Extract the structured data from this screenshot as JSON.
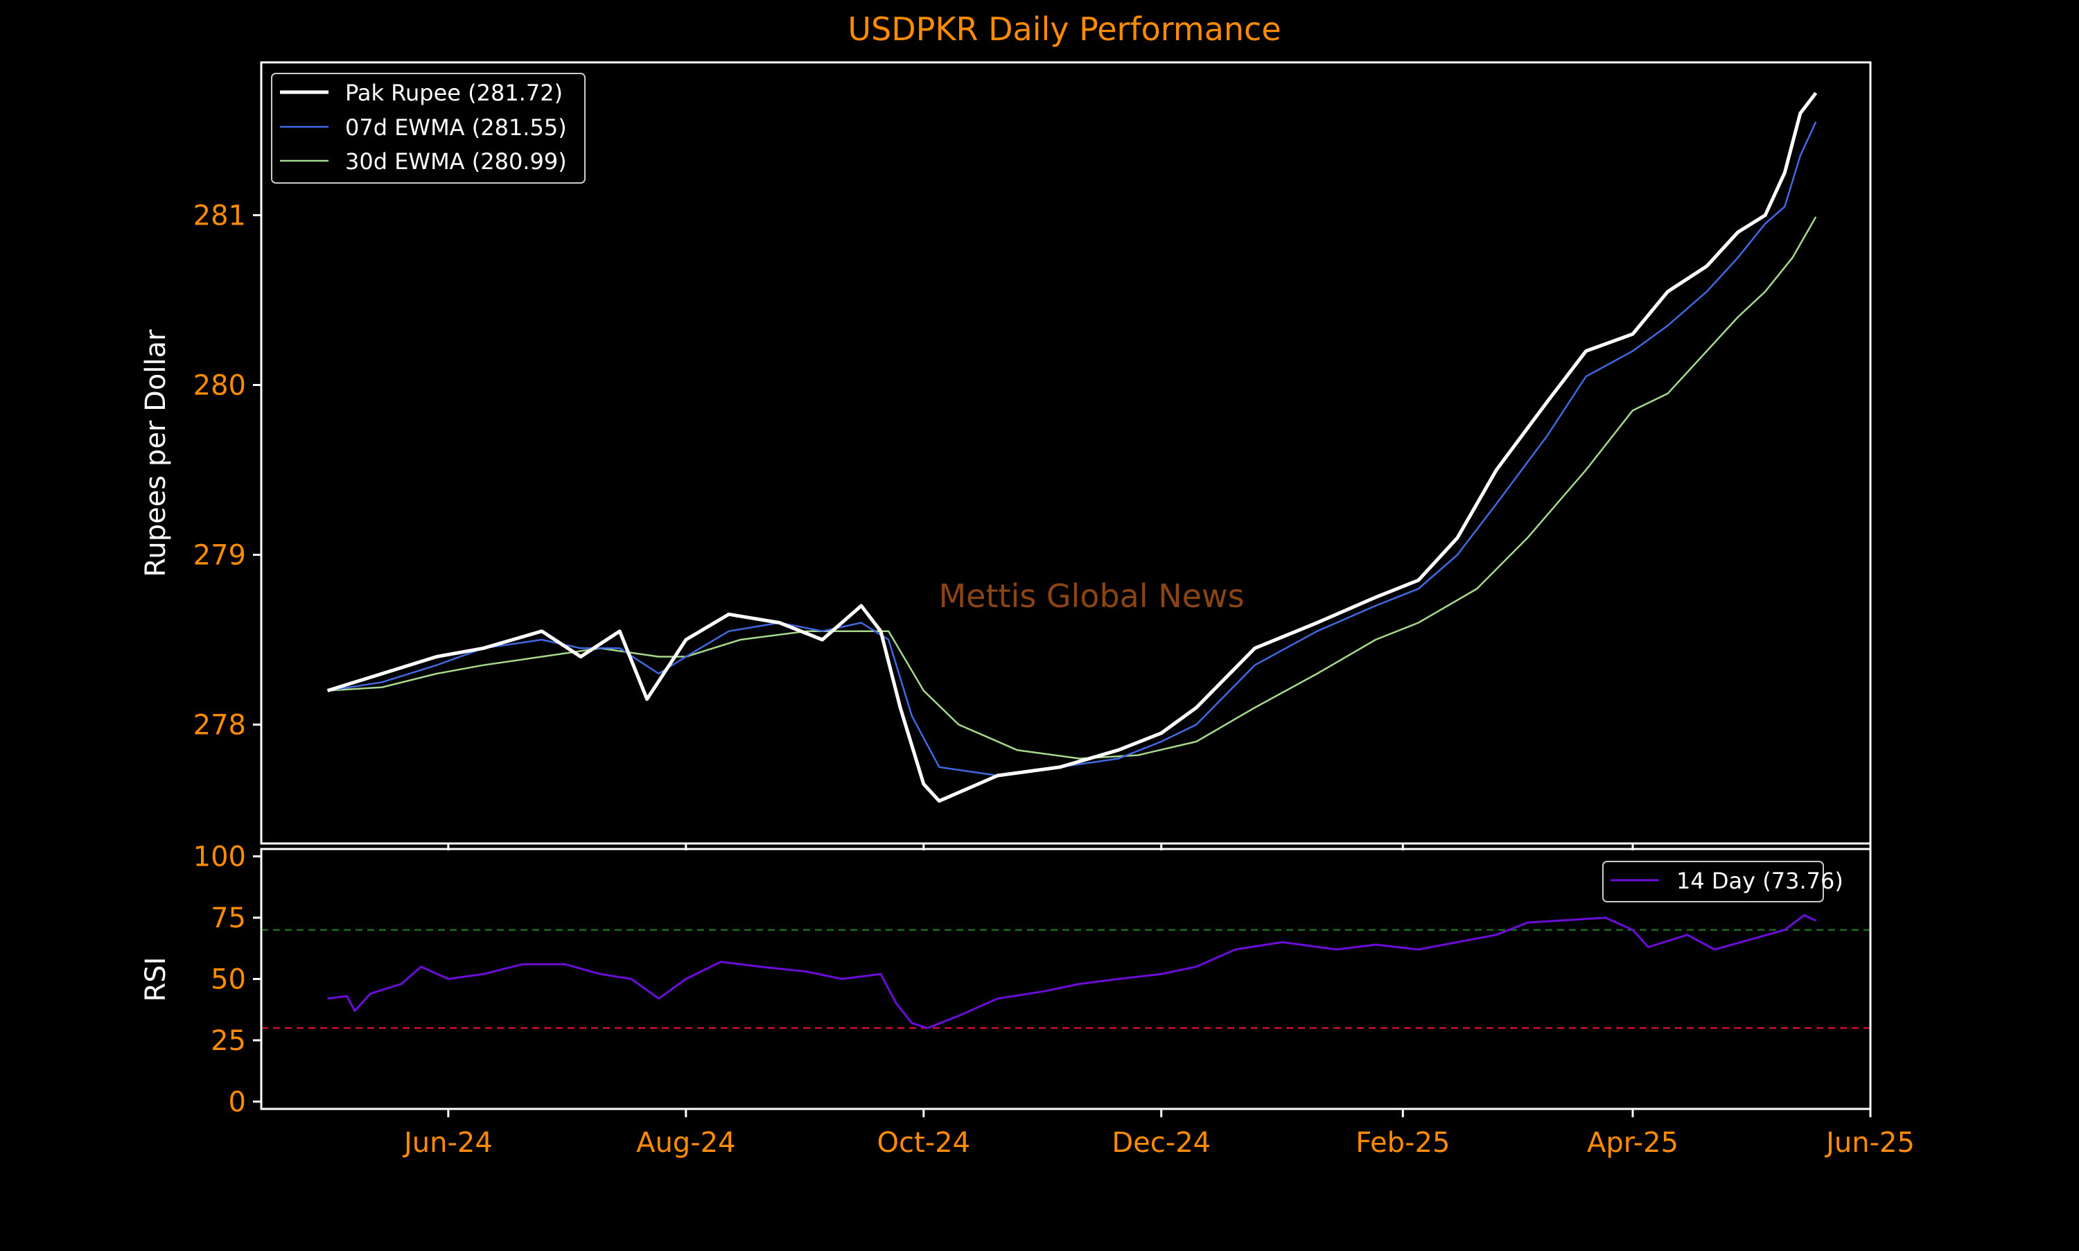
{
  "watermark": "Mettis Global News",
  "colors": {
    "background": "#000000",
    "accent_text": "#ff8c00",
    "axis_label_text": "#ffffff",
    "frame": "#ffffff",
    "price_line": "#ffffff",
    "ewma7_line": "#4169e1",
    "ewma30_line": "#a6d98c",
    "rsi_line": "#6a0dd6",
    "overbought_line": "#1a6b1a",
    "oversold_line": "#c8102e",
    "watermark": "#8b4513"
  },
  "chart_data": [
    {
      "type": "line",
      "title": "USDPKR Daily Performance",
      "xlabel": "",
      "ylabel": "Rupees per Dollar",
      "x_tick_labels": [
        "Jun-24",
        "Aug-24",
        "Oct-24",
        "Dec-24",
        "Feb-25",
        "Apr-25",
        "Jun-25"
      ],
      "x_tick_dates": [
        "2024-06-01",
        "2024-08-01",
        "2024-10-01",
        "2024-12-01",
        "2025-02-01",
        "2025-04-01",
        "2025-06-01"
      ],
      "xlim": [
        "2024-04-14",
        "2025-06-01"
      ],
      "ylim": [
        277.3,
        281.9
      ],
      "y_ticks": [
        278,
        279,
        280,
        281
      ],
      "grid": false,
      "legend_position": "top-left",
      "series": [
        {
          "name": "Pak Rupee (281.72)",
          "points": [
            [
              "2024-05-01",
              278.2
            ],
            [
              "2024-05-15",
              278.3
            ],
            [
              "2024-05-29",
              278.4
            ],
            [
              "2024-06-10",
              278.45
            ],
            [
              "2024-06-25",
              278.55
            ],
            [
              "2024-07-05",
              278.4
            ],
            [
              "2024-07-15",
              278.55
            ],
            [
              "2024-07-22",
              278.15
            ],
            [
              "2024-08-01",
              278.5
            ],
            [
              "2024-08-12",
              278.65
            ],
            [
              "2024-08-25",
              278.6
            ],
            [
              "2024-09-05",
              278.5
            ],
            [
              "2024-09-15",
              278.7
            ],
            [
              "2024-09-20",
              278.55
            ],
            [
              "2024-09-25",
              278.1
            ],
            [
              "2024-10-01",
              277.65
            ],
            [
              "2024-10-05",
              277.55
            ],
            [
              "2024-10-20",
              277.7
            ],
            [
              "2024-11-05",
              277.75
            ],
            [
              "2024-11-20",
              277.85
            ],
            [
              "2024-12-01",
              277.95
            ],
            [
              "2024-12-10",
              278.1
            ],
            [
              "2024-12-25",
              278.45
            ],
            [
              "2025-01-10",
              278.6
            ],
            [
              "2025-01-25",
              278.75
            ],
            [
              "2025-02-05",
              278.85
            ],
            [
              "2025-02-15",
              279.1
            ],
            [
              "2025-02-25",
              279.5
            ],
            [
              "2025-03-10",
              279.9
            ],
            [
              "2025-03-20",
              280.2
            ],
            [
              "2025-04-01",
              280.3
            ],
            [
              "2025-04-10",
              280.55
            ],
            [
              "2025-04-20",
              280.7
            ],
            [
              "2025-04-28",
              280.9
            ],
            [
              "2025-05-05",
              281.0
            ],
            [
              "2025-05-10",
              281.25
            ],
            [
              "2025-05-14",
              281.6
            ],
            [
              "2025-05-18",
              281.72
            ]
          ]
        },
        {
          "name": "07d EWMA (281.55)",
          "points": [
            [
              "2024-05-01",
              278.2
            ],
            [
              "2024-05-15",
              278.25
            ],
            [
              "2024-05-29",
              278.35
            ],
            [
              "2024-06-10",
              278.45
            ],
            [
              "2024-06-25",
              278.5
            ],
            [
              "2024-07-05",
              278.45
            ],
            [
              "2024-07-15",
              278.45
            ],
            [
              "2024-07-25",
              278.3
            ],
            [
              "2024-08-01",
              278.4
            ],
            [
              "2024-08-12",
              278.55
            ],
            [
              "2024-08-25",
              278.6
            ],
            [
              "2024-09-05",
              278.55
            ],
            [
              "2024-09-15",
              278.6
            ],
            [
              "2024-09-22",
              278.5
            ],
            [
              "2024-09-28",
              278.05
            ],
            [
              "2024-10-05",
              277.75
            ],
            [
              "2024-10-20",
              277.7
            ],
            [
              "2024-11-05",
              277.75
            ],
            [
              "2024-11-20",
              277.8
            ],
            [
              "2024-12-01",
              277.9
            ],
            [
              "2024-12-10",
              278.0
            ],
            [
              "2024-12-25",
              278.35
            ],
            [
              "2025-01-10",
              278.55
            ],
            [
              "2025-01-25",
              278.7
            ],
            [
              "2025-02-05",
              278.8
            ],
            [
              "2025-02-15",
              279.0
            ],
            [
              "2025-02-25",
              279.3
            ],
            [
              "2025-03-10",
              279.7
            ],
            [
              "2025-03-20",
              280.05
            ],
            [
              "2025-04-01",
              280.2
            ],
            [
              "2025-04-10",
              280.35
            ],
            [
              "2025-04-20",
              280.55
            ],
            [
              "2025-04-28",
              280.75
            ],
            [
              "2025-05-05",
              280.95
            ],
            [
              "2025-05-10",
              281.05
            ],
            [
              "2025-05-14",
              281.35
            ],
            [
              "2025-05-18",
              281.55
            ]
          ]
        },
        {
          "name": "30d EWMA (280.99)",
          "points": [
            [
              "2024-05-01",
              278.2
            ],
            [
              "2024-05-15",
              278.22
            ],
            [
              "2024-05-29",
              278.3
            ],
            [
              "2024-06-10",
              278.35
            ],
            [
              "2024-06-25",
              278.4
            ],
            [
              "2024-07-10",
              278.45
            ],
            [
              "2024-07-25",
              278.4
            ],
            [
              "2024-08-01",
              278.4
            ],
            [
              "2024-08-15",
              278.5
            ],
            [
              "2024-09-01",
              278.55
            ],
            [
              "2024-09-15",
              278.55
            ],
            [
              "2024-09-22",
              278.55
            ],
            [
              "2024-10-01",
              278.2
            ],
            [
              "2024-10-10",
              278.0
            ],
            [
              "2024-10-25",
              277.85
            ],
            [
              "2024-11-10",
              277.8
            ],
            [
              "2024-11-25",
              277.82
            ],
            [
              "2024-12-10",
              277.9
            ],
            [
              "2024-12-25",
              278.1
            ],
            [
              "2025-01-10",
              278.3
            ],
            [
              "2025-01-25",
              278.5
            ],
            [
              "2025-02-05",
              278.6
            ],
            [
              "2025-02-20",
              278.8
            ],
            [
              "2025-03-05",
              279.1
            ],
            [
              "2025-03-20",
              279.5
            ],
            [
              "2025-04-01",
              279.85
            ],
            [
              "2025-04-10",
              279.95
            ],
            [
              "2025-04-20",
              280.2
            ],
            [
              "2025-04-28",
              280.4
            ],
            [
              "2025-05-05",
              280.55
            ],
            [
              "2025-05-12",
              280.75
            ],
            [
              "2025-05-18",
              280.99
            ]
          ]
        }
      ]
    },
    {
      "type": "line",
      "title": "",
      "xlabel": "",
      "ylabel": "RSI",
      "xlim": [
        "2024-04-14",
        "2025-06-01"
      ],
      "ylim": [
        -3,
        103
      ],
      "y_ticks": [
        0,
        25,
        50,
        75,
        100
      ],
      "grid": false,
      "legend_position": "top-right",
      "reference_lines": [
        {
          "y": 70,
          "style": "dashed",
          "color": "#1a6b1a"
        },
        {
          "y": 30,
          "style": "dashed",
          "color": "#c8102e"
        }
      ],
      "series": [
        {
          "name": "14 Day (73.76)",
          "points": [
            [
              "2024-05-01",
              42
            ],
            [
              "2024-05-06",
              43
            ],
            [
              "2024-05-08",
              37
            ],
            [
              "2024-05-12",
              44
            ],
            [
              "2024-05-20",
              48
            ],
            [
              "2024-05-25",
              55
            ],
            [
              "2024-06-01",
              50
            ],
            [
              "2024-06-10",
              52
            ],
            [
              "2024-06-20",
              56
            ],
            [
              "2024-07-01",
              56
            ],
            [
              "2024-07-10",
              52
            ],
            [
              "2024-07-18",
              50
            ],
            [
              "2024-07-25",
              42
            ],
            [
              "2024-08-01",
              50
            ],
            [
              "2024-08-10",
              57
            ],
            [
              "2024-08-20",
              55
            ],
            [
              "2024-09-01",
              53
            ],
            [
              "2024-09-10",
              50
            ],
            [
              "2024-09-20",
              52
            ],
            [
              "2024-09-24",
              40
            ],
            [
              "2024-09-28",
              32
            ],
            [
              "2024-10-02",
              30
            ],
            [
              "2024-10-10",
              35
            ],
            [
              "2024-10-20",
              42
            ],
            [
              "2024-11-01",
              45
            ],
            [
              "2024-11-10",
              48
            ],
            [
              "2024-11-20",
              50
            ],
            [
              "2024-12-01",
              52
            ],
            [
              "2024-12-10",
              55
            ],
            [
              "2024-12-20",
              62
            ],
            [
              "2025-01-01",
              65
            ],
            [
              "2025-01-15",
              62
            ],
            [
              "2025-01-25",
              64
            ],
            [
              "2025-02-05",
              62
            ],
            [
              "2025-02-15",
              65
            ],
            [
              "2025-02-25",
              68
            ],
            [
              "2025-03-05",
              73
            ],
            [
              "2025-03-15",
              74
            ],
            [
              "2025-03-25",
              75
            ],
            [
              "2025-04-01",
              70
            ],
            [
              "2025-04-05",
              63
            ],
            [
              "2025-04-15",
              68
            ],
            [
              "2025-04-22",
              62
            ],
            [
              "2025-05-01",
              66
            ],
            [
              "2025-05-10",
              70
            ],
            [
              "2025-05-15",
              76
            ],
            [
              "2025-05-18",
              73.76
            ]
          ]
        }
      ]
    }
  ]
}
